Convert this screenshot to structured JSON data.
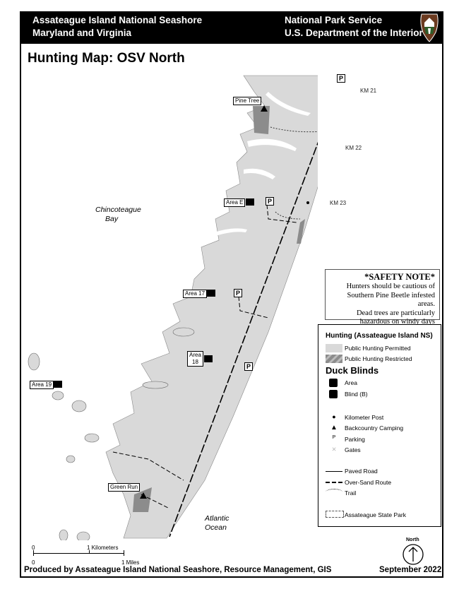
{
  "header": {
    "left_line1": "Assateague Island National Seashore",
    "left_line2": "Maryland and Virginia",
    "right_line1": "National Park Service",
    "right_line2": "U.S. Department of the Interior",
    "logo": "nps-arrowhead-logo"
  },
  "title": "Hunting Map: OSV North",
  "map": {
    "water_labels": {
      "bay_line1": "Chincoteague",
      "bay_line2": "Bay",
      "ocean_line1": "Atlantic",
      "ocean_line2": "Ocean"
    },
    "km_posts": [
      "KM 21",
      "KM 22",
      "KM 23"
    ],
    "area_tags": [
      "Pine Tree",
      "Area E",
      "Area 17",
      "Area 18",
      "Area 19",
      "Green Run"
    ],
    "area18_line1": "Area",
    "area18_line2": "18",
    "parking": "P",
    "colors": {
      "land": "#d9d9d9",
      "restricted": "#8c8c8c",
      "water": "#ffffff"
    }
  },
  "safety": {
    "title": "*SAFETY NOTE*",
    "line1": "Hunters should be cautious of",
    "line2": "Southern Pine Beetle infested areas.",
    "line3": "Dead trees are particularly",
    "line4": "hazardous on windy days"
  },
  "legend": {
    "hunting_title": "Hunting (Assateague Island NS)",
    "permitted": "Public Hunting Permitted",
    "restricted": "Public Hunting Restricted",
    "blinds_title": "Duck Blinds",
    "area": "Area",
    "blind": "Blind  (B)",
    "km_post": "Kilometer Post",
    "camping": "Backcountry Camping",
    "parking": "Parking",
    "parking_symbol": "P",
    "gates": "Gates",
    "paved": "Paved Road",
    "osv": "Over-Sand Route",
    "trail": "Trail",
    "state_park": "Assateague State Park"
  },
  "scale": {
    "km_zero": "0",
    "km_label": "1 Kilometers",
    "mi_zero": "0",
    "mi_label": "1 Miles"
  },
  "north": "North",
  "footer": {
    "credit": "Produced by Assateague Island National Seashore, Resource Management, GIS",
    "date": "September  2022"
  }
}
